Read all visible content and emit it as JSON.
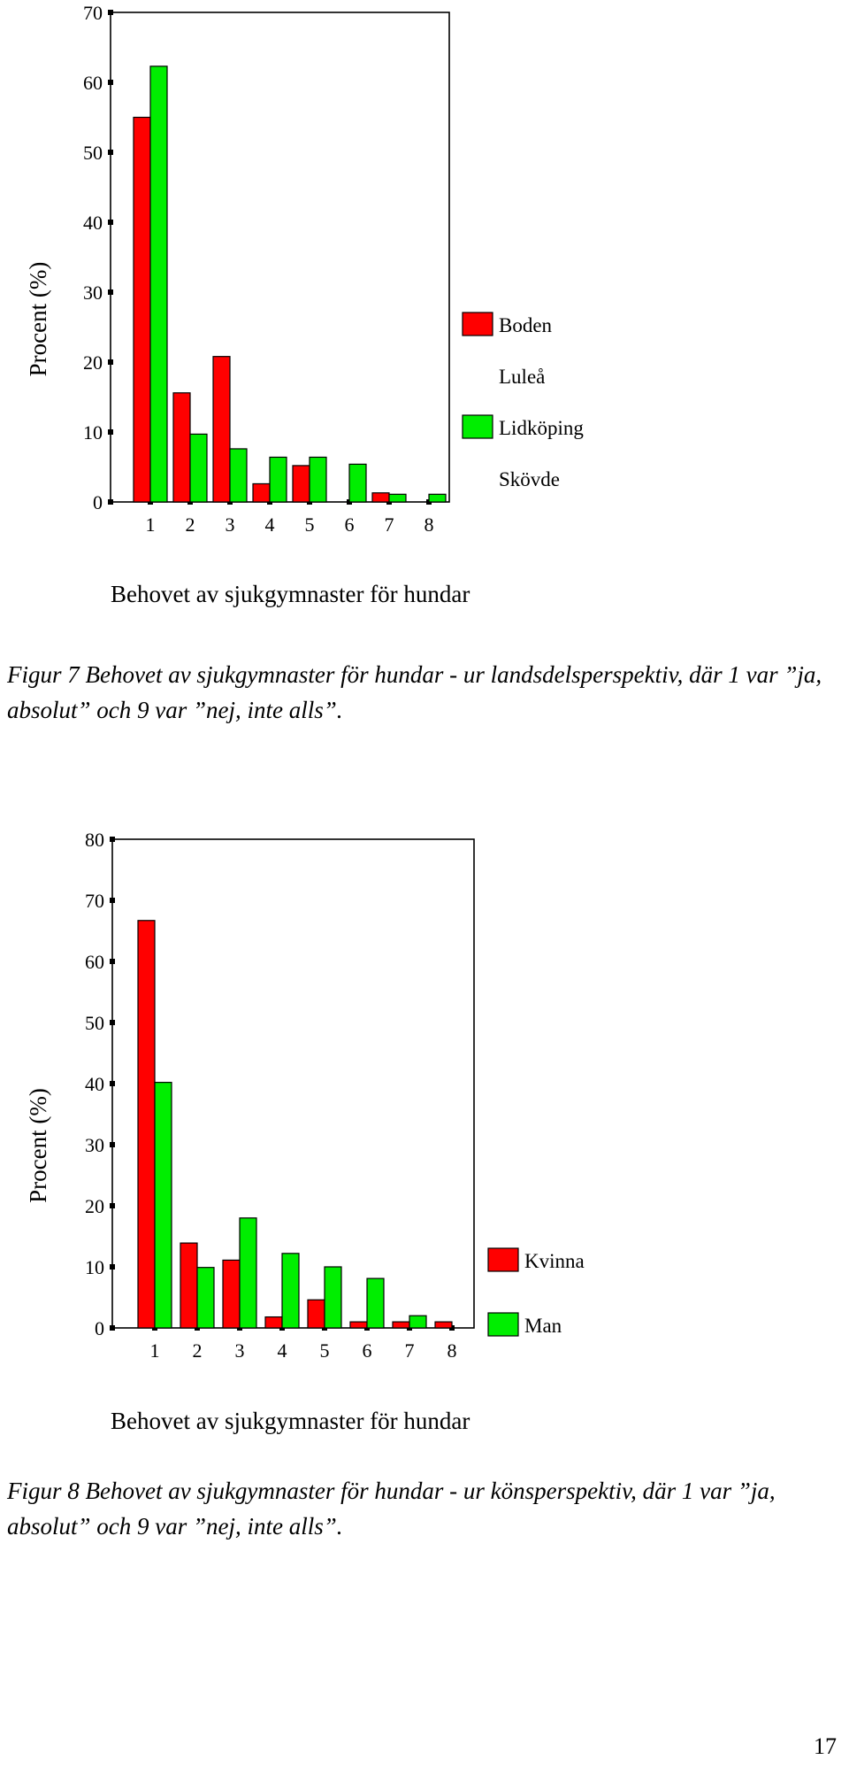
{
  "chart_data": [
    {
      "type": "bar",
      "ylabel": "Procent (%)",
      "xlabel": "Behovet av sjukgymnaster för hundar",
      "categories": [
        "1",
        "2",
        "3",
        "4",
        "5",
        "6",
        "7",
        "8"
      ],
      "ylim": [
        0,
        70
      ],
      "yticks": [
        "0",
        "10",
        "20",
        "30",
        "40",
        "50",
        "60",
        "70"
      ],
      "series": [
        {
          "name": "Boden",
          "values": [
            55,
            15.6,
            20.8,
            2.6,
            5.2,
            0,
            1.3,
            0
          ]
        },
        {
          "name": "Luleå",
          "values": [
            0,
            0,
            0,
            0,
            0,
            0,
            0,
            0
          ]
        },
        {
          "name": "Lidköping",
          "values": [
            62.3,
            9.7,
            7.6,
            6.4,
            6.4,
            5.4,
            1.1,
            1.1
          ]
        },
        {
          "name": "Skövde",
          "values": [
            0,
            0,
            0,
            0,
            0,
            0,
            0,
            0
          ]
        }
      ],
      "colors": {
        "Boden": "#ff0000",
        "Lidköping": "#00ee00"
      },
      "legend_position": "right",
      "grid": false
    },
    {
      "type": "bar",
      "ylabel": "Procent (%)",
      "xlabel": "Behovet av sjukgymnaster för hundar",
      "categories": [
        "1",
        "2",
        "3",
        "4",
        "5",
        "6",
        "7",
        "8"
      ],
      "ylim": [
        0,
        80
      ],
      "yticks": [
        "0",
        "10",
        "20",
        "30",
        "40",
        "50",
        "60",
        "70",
        "80"
      ],
      "series": [
        {
          "name": "Kvinna",
          "values": [
            66.7,
            13.9,
            11.1,
            1.8,
            4.6,
            1.0,
            1.0,
            1.0
          ]
        },
        {
          "name": "Man",
          "values": [
            40.2,
            9.9,
            18.0,
            12.2,
            10.0,
            8.1,
            2.0,
            0
          ]
        }
      ],
      "colors": {
        "Kvinna": "#ff0000",
        "Man": "#00ee00"
      },
      "legend_position": "right",
      "grid": false
    }
  ],
  "captions": {
    "figure7": "Figur 7 Behovet av sjukgymnaster för hundar - ur landsdelsperspektiv, där 1 var ”ja, absolut” och 9 var ”nej, inte alls”.",
    "figure8": "Figur 8 Behovet av sjukgymnaster för hundar - ur könsperspektiv, där 1 var ”ja, absolut” och 9 var ”nej, inte alls”."
  },
  "page_number": "17"
}
